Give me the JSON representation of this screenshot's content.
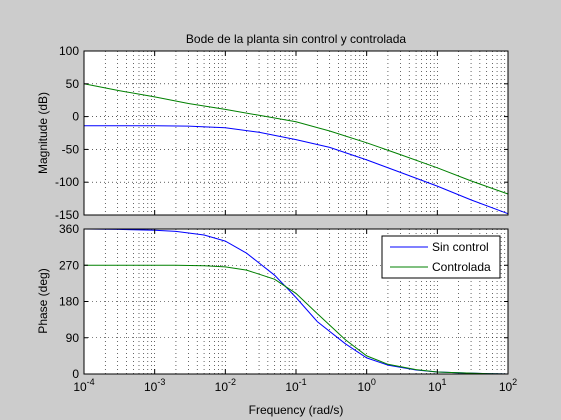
{
  "chart_data": {
    "type": "line",
    "title": "Bode de la planta sin control y controlada",
    "xlabel": "Frequency  (rad/s)",
    "xscale": "log",
    "xlim": [
      0.0001,
      100
    ],
    "x_tick_labels": [
      "10",
      "10",
      "10",
      "10",
      "10",
      "10",
      "10"
    ],
    "x_tick_exponents": [
      "-4",
      "-3",
      "-2",
      "-1",
      "0",
      "1",
      "2"
    ],
    "grid": true,
    "legend": {
      "position": "top-right",
      "axes": "phase"
    },
    "colors": {
      "sin_control": "#0000ff",
      "controlada": "#008000",
      "axes_bg": "#ffffff",
      "figure_bg": "#cccccc"
    },
    "panels": [
      {
        "name": "magnitude",
        "ylabel": "Magnitude (dB)",
        "ylim": [
          -150,
          100
        ],
        "yticks": [
          "100",
          "50",
          "0",
          "-50",
          "-100",
          "-150"
        ],
        "ytick_values": [
          100,
          50,
          0,
          -50,
          -100,
          -150
        ],
        "series": [
          {
            "name": "Sin control",
            "color": "#0000ff",
            "x": [
              0.0001,
              0.0003,
              0.001,
              0.003,
              0.01,
              0.03,
              0.1,
              0.3,
              1,
              3,
              10,
              30,
              100
            ],
            "y": [
              -14,
              -14,
              -14,
              -14.5,
              -17,
              -24,
              -35,
              -47,
              -66,
              -85,
              -106,
              -127,
              -148
            ]
          },
          {
            "name": "Controlada",
            "color": "#008000",
            "x": [
              0.0001,
              0.0003,
              0.001,
              0.003,
              0.01,
              0.03,
              0.1,
              0.3,
              1,
              3,
              10,
              30,
              100
            ],
            "y": [
              50,
              40,
              30,
              20,
              11,
              2,
              -8,
              -22,
              -40,
              -58,
              -78,
              -98,
              -118
            ]
          }
        ]
      },
      {
        "name": "phase",
        "ylabel": "Phase (deg)",
        "ylim": [
          0,
          360
        ],
        "yticks": [
          "360",
          "270",
          "180",
          "90",
          "0"
        ],
        "ytick_values": [
          360,
          270,
          180,
          90,
          0
        ],
        "series": [
          {
            "name": "Sin control",
            "color": "#0000ff",
            "x": [
              0.0001,
              0.0003,
              0.001,
              0.002,
              0.005,
              0.01,
              0.02,
              0.05,
              0.1,
              0.2,
              0.5,
              1,
              2,
              5,
              10,
              20,
              50,
              100
            ],
            "y": [
              360,
              359,
              357,
              354,
              345,
              330,
              300,
              245,
              190,
              130,
              75,
              40,
              22,
              10,
              5,
              3,
              1,
              0
            ]
          },
          {
            "name": "Controlada",
            "color": "#008000",
            "x": [
              0.0001,
              0.0003,
              0.001,
              0.002,
              0.005,
              0.01,
              0.02,
              0.05,
              0.1,
              0.2,
              0.5,
              1,
              2,
              5,
              10,
              20,
              50,
              100
            ],
            "y": [
              270,
              270,
              270,
              270,
              269,
              266,
              258,
              235,
              200,
              150,
              85,
              45,
              24,
              11,
              5,
              3,
              1,
              0
            ]
          }
        ]
      }
    ]
  }
}
